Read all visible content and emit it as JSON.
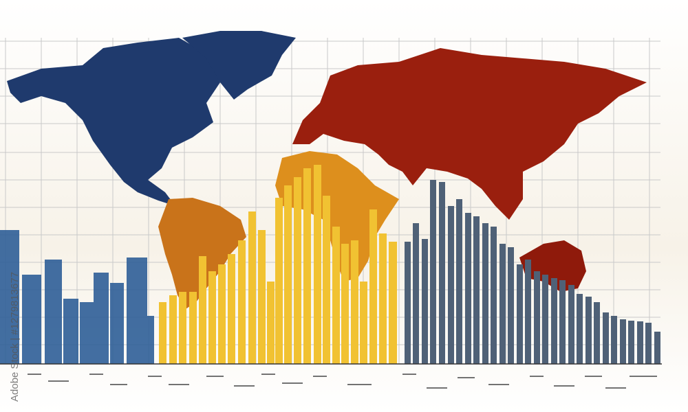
{
  "watermark": "Adobe Stock | #1279813677"
}
